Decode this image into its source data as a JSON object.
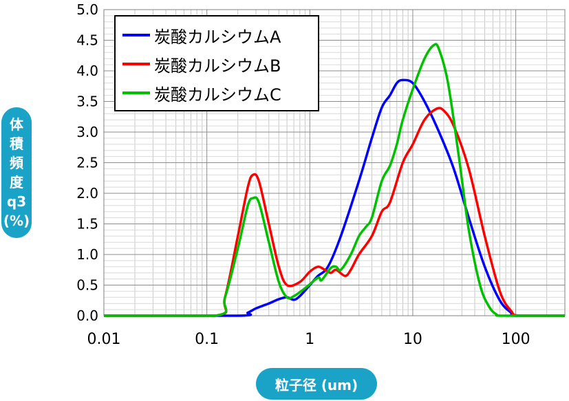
{
  "chart_data": {
    "type": "line",
    "xscale": "log",
    "xlim": [
      0.01,
      300
    ],
    "ylim": [
      0,
      5
    ],
    "xticks": [
      "0.01",
      "0.1",
      "1",
      "10",
      "100"
    ],
    "xtick_values": [
      0.01,
      0.1,
      1,
      10,
      100
    ],
    "yticks": [
      "0.0",
      "0.5",
      "1.0",
      "1.5",
      "2.0",
      "2.5",
      "3.0",
      "3.5",
      "4.0",
      "4.5",
      "5.0"
    ],
    "ytick_values": [
      0,
      0.5,
      1,
      1.5,
      2,
      2.5,
      3,
      3.5,
      4,
      4.5,
      5
    ],
    "xlabel": "粒子径 (um)",
    "ylabel": "体\n積\n頻\n度\nq3\n(%)",
    "grid": true,
    "legend_position": "top-left",
    "series": [
      {
        "name": "炭酸カルシウムA",
        "color": "#0000ff",
        "points": [
          [
            0.01,
            0
          ],
          [
            0.2,
            0
          ],
          [
            0.25,
            0.05
          ],
          [
            0.3,
            0.12
          ],
          [
            0.4,
            0.2
          ],
          [
            0.5,
            0.27
          ],
          [
            0.6,
            0.3
          ],
          [
            0.7,
            0.26
          ],
          [
            0.8,
            0.32
          ],
          [
            1.0,
            0.5
          ],
          [
            1.2,
            0.65
          ],
          [
            1.5,
            0.8
          ],
          [
            2.0,
            1.3
          ],
          [
            3.0,
            2.2
          ],
          [
            4.0,
            2.9
          ],
          [
            5.0,
            3.4
          ],
          [
            6.0,
            3.6
          ],
          [
            7.0,
            3.8
          ],
          [
            8.0,
            3.85
          ],
          [
            10.0,
            3.8
          ],
          [
            13.0,
            3.5
          ],
          [
            18.0,
            3.0
          ],
          [
            25.0,
            2.4
          ],
          [
            35.0,
            1.6
          ],
          [
            50.0,
            0.8
          ],
          [
            70.0,
            0.25
          ],
          [
            90.0,
            0.05
          ],
          [
            100.0,
            0
          ],
          [
            300,
            0
          ]
        ]
      },
      {
        "name": "炭酸カルシウムB",
        "color": "#ff0000",
        "points": [
          [
            0.01,
            0
          ],
          [
            0.12,
            0
          ],
          [
            0.15,
            0.3
          ],
          [
            0.2,
            1.3
          ],
          [
            0.25,
            2.1
          ],
          [
            0.28,
            2.3
          ],
          [
            0.32,
            2.2
          ],
          [
            0.4,
            1.5
          ],
          [
            0.5,
            0.8
          ],
          [
            0.6,
            0.5
          ],
          [
            0.8,
            0.55
          ],
          [
            1.0,
            0.72
          ],
          [
            1.2,
            0.8
          ],
          [
            1.4,
            0.75
          ],
          [
            1.6,
            0.7
          ],
          [
            1.8,
            0.75
          ],
          [
            2.2,
            0.65
          ],
          [
            2.5,
            0.75
          ],
          [
            3.0,
            1.0
          ],
          [
            4.0,
            1.3
          ],
          [
            5.0,
            1.7
          ],
          [
            6.0,
            1.85
          ],
          [
            8.0,
            2.5
          ],
          [
            10.0,
            2.8
          ],
          [
            13.0,
            3.2
          ],
          [
            17.0,
            3.38
          ],
          [
            20.0,
            3.35
          ],
          [
            25.0,
            3.1
          ],
          [
            35.0,
            2.4
          ],
          [
            50.0,
            1.3
          ],
          [
            70.0,
            0.4
          ],
          [
            90.0,
            0.08
          ],
          [
            110.0,
            0
          ],
          [
            300,
            0
          ]
        ]
      },
      {
        "name": "炭酸カルシウムC",
        "color": "#00c000",
        "points": [
          [
            0.01,
            0
          ],
          [
            0.12,
            0
          ],
          [
            0.15,
            0.3
          ],
          [
            0.2,
            1.1
          ],
          [
            0.25,
            1.8
          ],
          [
            0.28,
            1.92
          ],
          [
            0.32,
            1.85
          ],
          [
            0.4,
            1.2
          ],
          [
            0.5,
            0.55
          ],
          [
            0.6,
            0.3
          ],
          [
            0.7,
            0.32
          ],
          [
            0.9,
            0.45
          ],
          [
            1.2,
            0.62
          ],
          [
            1.3,
            0.58
          ],
          [
            1.6,
            0.78
          ],
          [
            1.8,
            0.8
          ],
          [
            2.0,
            0.75
          ],
          [
            2.5,
            1.0
          ],
          [
            3.0,
            1.3
          ],
          [
            3.5,
            1.45
          ],
          [
            4.0,
            1.6
          ],
          [
            5.0,
            2.2
          ],
          [
            6.0,
            2.45
          ],
          [
            7.0,
            2.8
          ],
          [
            8.0,
            3.2
          ],
          [
            10.0,
            3.7
          ],
          [
            13.0,
            4.2
          ],
          [
            16.0,
            4.42
          ],
          [
            18.0,
            4.35
          ],
          [
            22.0,
            3.8
          ],
          [
            28.0,
            2.6
          ],
          [
            35.0,
            1.4
          ],
          [
            45.0,
            0.5
          ],
          [
            55.0,
            0.15
          ],
          [
            65.0,
            0.02
          ],
          [
            75.0,
            0
          ],
          [
            300,
            0
          ]
        ]
      }
    ]
  }
}
